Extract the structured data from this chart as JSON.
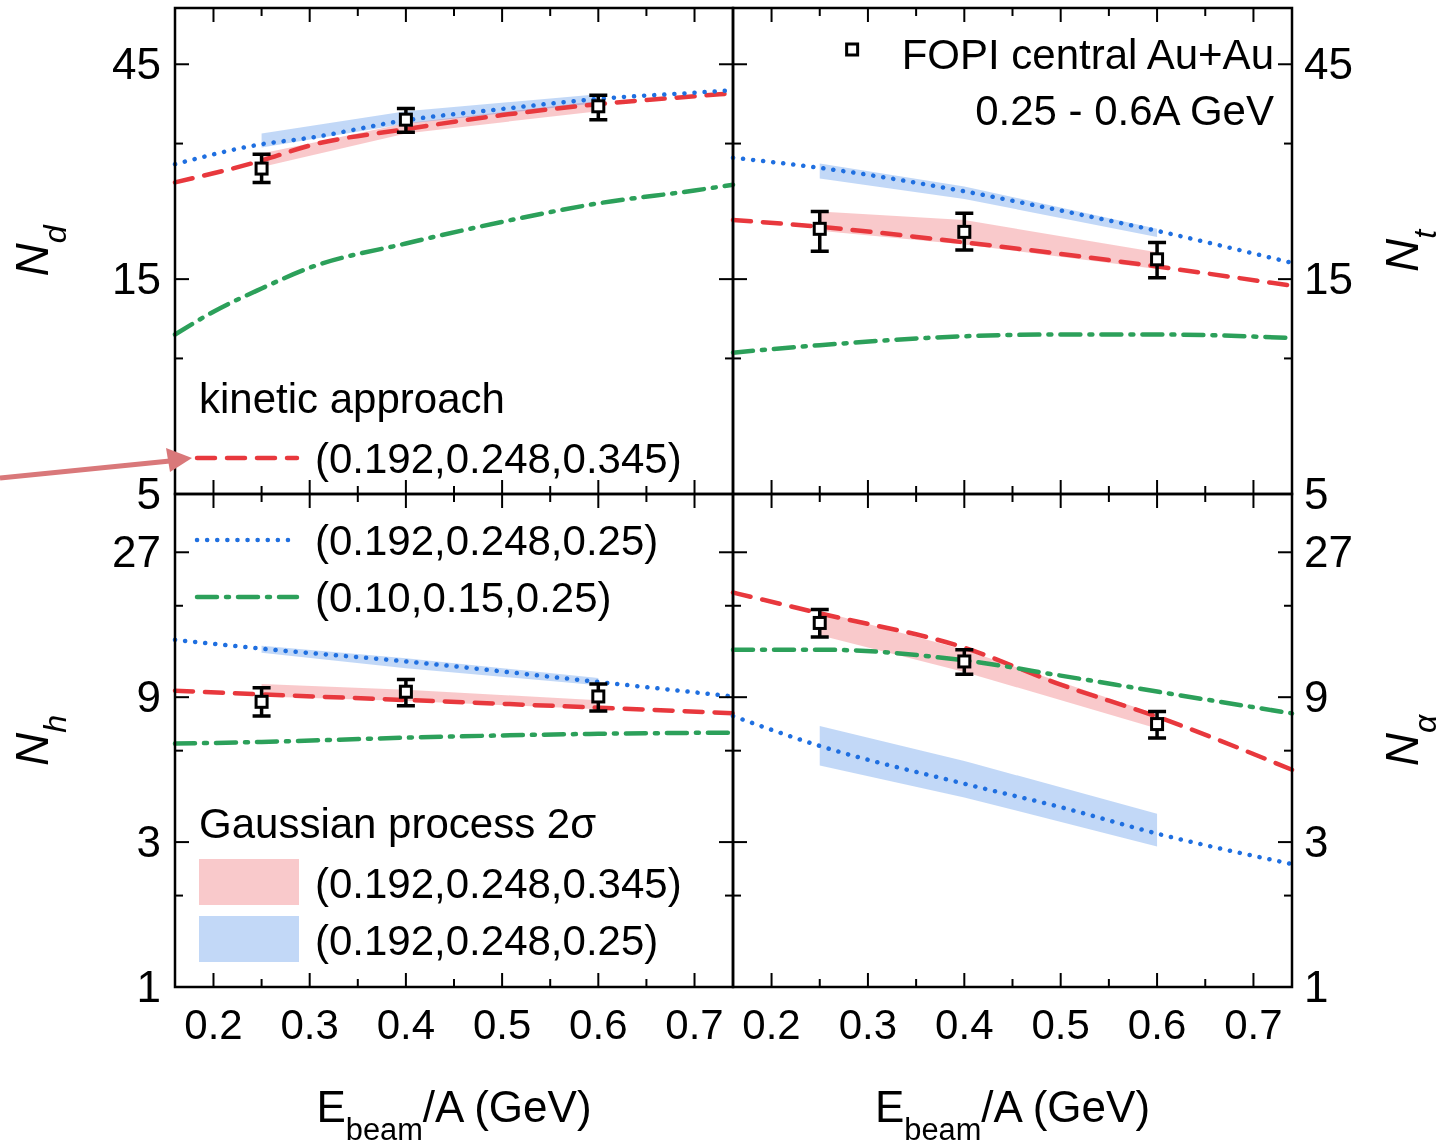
{
  "chart_data": [
    {
      "type": "line",
      "ylabel": "N$_{d}$",
      "log": true,
      "xlim": [
        0.16,
        0.74
      ],
      "ylim": [
        5,
        60
      ],
      "tick_labels": "y",
      "legend": "bottom left",
      "legend_title": "kinetic approach",
      "xticks": [
        0.2,
        {
          "value": 0.25,
          "label": null
        },
        0.3,
        {
          "value": 0.35,
          "label": null
        },
        0.4,
        {
          "value": 0.45,
          "label": null
        },
        0.5,
        {
          "value": 0.55,
          "label": null
        },
        0.6,
        {
          "value": 0.65,
          "label": null
        },
        0.7
      ],
      "yticks": [
        5,
        {
          "value": 10,
          "label": null
        },
        15,
        {
          "value": 30,
          "label": null
        },
        45
      ],
      "series": [
        {
          "name": "(0.192,0.248,0.345)",
          "color": "#e8383d",
          "line_style": "dashed",
          "x": [
            0.16,
            0.25,
            0.3,
            0.4,
            0.5,
            0.6,
            0.7,
            0.74
          ],
          "values": [
            24.6,
            27.5,
            29.7,
            32.3,
            34.7,
            36.7,
            38.2,
            38.8
          ],
          "lower": [
            null,
            26.6,
            null,
            31.6,
            null,
            35.4,
            null,
            null
          ],
          "upper": [
            null,
            28.5,
            null,
            33.3,
            null,
            37.3,
            null,
            null
          ]
        },
        {
          "color": "#1f6fe0",
          "line_style": "dotted",
          "x": [
            0.16,
            0.25,
            0.3,
            0.4,
            0.5,
            0.6,
            0.7,
            0.74
          ],
          "values": [
            27.0,
            29.9,
            30.9,
            33.8,
            35.8,
            37.7,
            38.9,
            39.4
          ],
          "lower": [
            null,
            29.4,
            null,
            33.2,
            null,
            36.9,
            null,
            null
          ],
          "upper": [
            null,
            31.6,
            null,
            35.4,
            null,
            38.6,
            null,
            null
          ]
        },
        {
          "color": "#2ca05a",
          "line_style": "dashdot",
          "x": [
            0.16,
            0.2,
            0.25,
            0.3,
            0.4,
            0.5,
            0.6,
            0.7,
            0.74
          ],
          "values": [
            11.3,
            12.7,
            14.3,
            15.9,
            18.0,
            20.1,
            22.1,
            23.6,
            24.3
          ]
        },
        {
          "type": "scatter",
          "color": "#000000",
          "marker": "square",
          "x": [
            0.25,
            0.4,
            0.6
          ],
          "values": [
            26.4,
            33.9,
            36.3
          ],
          "errors": [
            [
              24.6,
              28.4
            ],
            [
              31.8,
              35.9
            ],
            [
              33.9,
              38.4
            ]
          ]
        }
      ]
    },
    {
      "type": "line",
      "ylabel": "N$_{t}$",
      "log": true,
      "xlim": [
        0.16,
        0.74
      ],
      "ylim": [
        5,
        60
      ],
      "tick_labels": "y",
      "legend": "top right",
      "annotations": [
        "0.25 - 0.6A GeV"
      ],
      "xticks": [
        0.2,
        {
          "value": 0.25,
          "label": null
        },
        0.3,
        {
          "value": 0.35,
          "label": null
        },
        0.4,
        {
          "value": 0.45,
          "label": null
        },
        0.5,
        {
          "value": 0.55,
          "label": null
        },
        0.6,
        {
          "value": 0.65,
          "label": null
        },
        0.7
      ],
      "yticks": [
        5,
        {
          "value": 10,
          "label": null
        },
        15,
        {
          "value": 30,
          "label": null
        },
        45
      ],
      "series": [
        {
          "color": "#e8383d",
          "line_style": "dashed",
          "x": [
            0.16,
            0.25,
            0.4,
            0.6,
            0.74
          ],
          "values": [
            20.3,
            19.6,
            18.1,
            16.0,
            14.5
          ],
          "lower": [
            null,
            19.2,
            17.9,
            15.8,
            null
          ],
          "upper": [
            null,
            21.2,
            20.3,
            17.2,
            null
          ]
        },
        {
          "color": "#1f6fe0",
          "line_style": "dotted",
          "x": [
            0.16,
            0.25,
            0.4,
            0.5,
            0.6,
            0.74
          ],
          "values": [
            27.9,
            26.5,
            23.5,
            21.3,
            19.2,
            16.3
          ],
          "lower": [
            null,
            25.1,
            22.6,
            null,
            18.6,
            null
          ],
          "upper": [
            null,
            27.1,
            24.1,
            null,
            19.4,
            null
          ]
        },
        {
          "color": "#2ca05a",
          "line_style": "dashdot",
          "x": [
            0.16,
            0.25,
            0.4,
            0.5,
            0.6,
            0.74
          ],
          "values": [
            10.3,
            10.7,
            11.2,
            11.3,
            11.3,
            11.1
          ]
        },
        {
          "name": "FOPI  central Au+Au",
          "type": "scatter",
          "color": "#000000",
          "marker": "square",
          "x": [
            0.25,
            0.4,
            0.6
          ],
          "values": [
            19.4,
            19.1,
            16.6
          ],
          "errors": [
            [
              17.3,
              21.2
            ],
            [
              17.4,
              21.0
            ],
            [
              15.1,
              18.1
            ]
          ]
        }
      ]
    },
    {
      "type": "line",
      "ylabel": "N$_{h}$",
      "xlabel": "E$_{beam}$/A   (GeV)",
      "log": true,
      "xlim": [
        0.16,
        0.74
      ],
      "ylim": [
        1,
        42
      ],
      "legend": "left",
      "legend_title": "Gaussian process 2σ",
      "xticks": [
        0.2,
        {
          "value": 0.25,
          "label": null
        },
        0.3,
        {
          "value": 0.35,
          "label": null
        },
        0.4,
        {
          "value": 0.45,
          "label": null
        },
        0.5,
        {
          "value": 0.55,
          "label": null
        },
        0.6,
        {
          "value": 0.65,
          "label": null
        },
        0.7
      ],
      "yticks": [
        1,
        {
          "value": 2,
          "label": null
        },
        3,
        {
          "value": 6,
          "label": null
        },
        9,
        {
          "value": 18,
          "label": null
        },
        27
      ],
      "series": [
        {
          "name": "(0.192,0.248,0.345)",
          "color": "#e8383d",
          "line_style": "dashed",
          "x": [
            0.16,
            0.25,
            0.4,
            0.6,
            0.74
          ],
          "values": [
            9.45,
            9.19,
            8.81,
            8.31,
            7.97
          ],
          "lower": [
            null,
            9.05,
            8.74,
            8.22,
            null
          ],
          "upper": [
            null,
            9.94,
            9.52,
            8.79,
            null
          ]
        },
        {
          "name": "(0.192,0.248,0.25)",
          "color": "#1f6fe0",
          "line_style": "dotted",
          "x": [
            0.16,
            0.25,
            0.4,
            0.6,
            0.74
          ],
          "values": [
            13.9,
            13.0,
            11.8,
            10.1,
            9.05
          ],
          "lower": [
            null,
            12.6,
            11.2,
            9.85,
            null
          ],
          "upper": [
            null,
            13.3,
            12.1,
            10.4,
            null
          ]
        },
        {
          "name": "(0.10,0.15,0.25)",
          "color": "#2ca05a",
          "line_style": "dashdot",
          "x": [
            0.16,
            0.25,
            0.4,
            0.6,
            0.74
          ],
          "values": [
            6.33,
            6.41,
            6.62,
            6.82,
            6.88
          ]
        },
        {
          "type": "scatter",
          "color": "#000000",
          "marker": "square",
          "x": [
            0.25,
            0.4,
            0.6
          ],
          "values": [
            8.69,
            9.38,
            9.05
          ],
          "errors": [
            [
              7.8,
              9.66
            ],
            [
              8.43,
              10.3
            ],
            [
              8.1,
              9.94
            ]
          ]
        }
      ]
    },
    {
      "type": "line",
      "ylabel": "N$_{α}$",
      "xlabel": "E$_{beam}$/A   (GeV)",
      "log": true,
      "xlim": [
        0.16,
        0.74
      ],
      "ylim": [
        1,
        42
      ],
      "xticks": [
        0.2,
        {
          "value": 0.25,
          "label": null
        },
        0.3,
        {
          "value": 0.35,
          "label": null
        },
        0.4,
        {
          "value": 0.45,
          "label": null
        },
        0.5,
        {
          "value": 0.55,
          "label": null
        },
        0.6,
        {
          "value": 0.65,
          "label": null
        },
        0.7
      ],
      "yticks": [
        1,
        {
          "value": 2,
          "label": null
        },
        3,
        {
          "value": 6,
          "label": null
        },
        9,
        {
          "value": 18,
          "label": null
        },
        27
      ],
      "series": [
        {
          "color": "#e8383d",
          "line_style": "dashed",
          "x": [
            0.16,
            0.25,
            0.4,
            0.5,
            0.6,
            0.74
          ],
          "values": [
            19.9,
            17.0,
            13.1,
            9.9,
            7.76,
            5.19
          ],
          "lower": [
            null,
            14.4,
            10.9,
            null,
            7.1,
            null
          ],
          "upper": [
            null,
            17.3,
            12.9,
            null,
            7.9,
            null
          ]
        },
        {
          "color": "#1f6fe0",
          "line_style": "dotted",
          "x": [
            0.16,
            0.25,
            0.4,
            0.5,
            0.6,
            0.74
          ],
          "values": [
            7.8,
            6.22,
            4.67,
            3.91,
            3.2,
            2.54
          ],
          "lower": [
            null,
            5.36,
            4.21,
            null,
            2.9,
            null
          ],
          "upper": [
            null,
            7.23,
            5.55,
            null,
            3.72,
            null
          ]
        },
        {
          "color": "#2ca05a",
          "line_style": "dashdot",
          "x": [
            0.16,
            0.25,
            0.4,
            0.5,
            0.6,
            0.74
          ],
          "values": [
            12.9,
            12.9,
            11.9,
            10.6,
            9.39,
            7.96
          ]
        },
        {
          "type": "scatter",
          "color": "#000000",
          "marker": "square",
          "x": [
            0.25,
            0.4,
            0.6
          ],
          "values": [
            15.8,
            11.8,
            7.34
          ],
          "errors": [
            [
              14.2,
              17.5
            ],
            [
              10.7,
              12.9
            ],
            [
              6.6,
              8.07
            ]
          ]
        }
      ]
    }
  ]
}
